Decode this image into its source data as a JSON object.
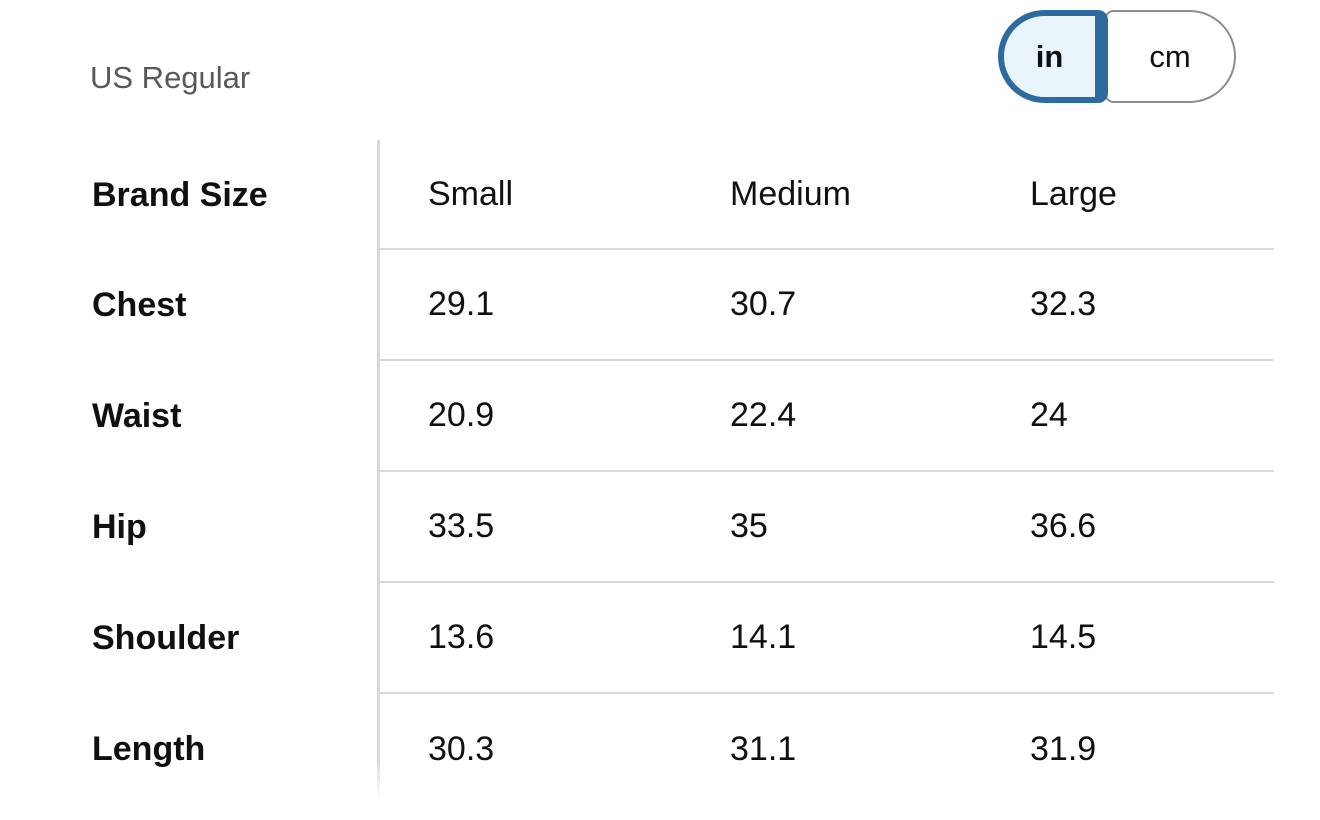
{
  "page": {
    "fit_label": "US Regular"
  },
  "unit_toggle": {
    "selected": "in",
    "options": [
      {
        "label": "in",
        "selected": true
      },
      {
        "label": "cm",
        "selected": false
      }
    ]
  },
  "size_chart": {
    "corner_label": "Brand Size",
    "columns": [
      "Small",
      "Medium",
      "Large"
    ],
    "rows": [
      {
        "label": "Chest",
        "values": [
          "29.1",
          "30.7",
          "32.3"
        ]
      },
      {
        "label": "Waist",
        "values": [
          "20.9",
          "22.4",
          "24"
        ]
      },
      {
        "label": "Hip",
        "values": [
          "33.5",
          "35",
          "36.6"
        ]
      },
      {
        "label": "Shoulder",
        "values": [
          "13.6",
          "14.1",
          "14.5"
        ]
      },
      {
        "label": "Length",
        "values": [
          "30.3",
          "31.1",
          "31.9"
        ]
      }
    ]
  },
  "colors": {
    "accent_blue": "#2D6AA0",
    "selected_segment_fill": "#EAF5FB",
    "divider_gray": "#D8DADA",
    "toggle_border_gray": "#8A8E8E",
    "text_primary": "#0F1111",
    "text_secondary": "#565959"
  }
}
